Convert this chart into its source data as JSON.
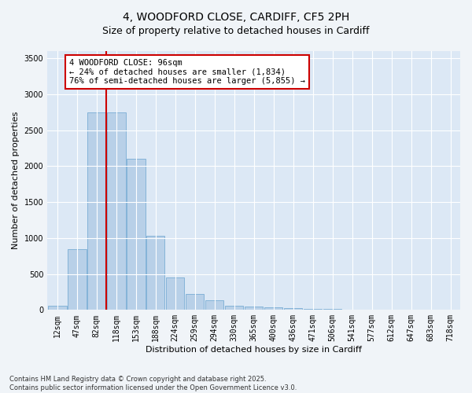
{
  "title_line1": "4, WOODFORD CLOSE, CARDIFF, CF5 2PH",
  "title_line2": "Size of property relative to detached houses in Cardiff",
  "xlabel": "Distribution of detached houses by size in Cardiff",
  "ylabel": "Number of detached properties",
  "categories": [
    "12sqm",
    "47sqm",
    "82sqm",
    "118sqm",
    "153sqm",
    "188sqm",
    "224sqm",
    "259sqm",
    "294sqm",
    "330sqm",
    "365sqm",
    "400sqm",
    "436sqm",
    "471sqm",
    "506sqm",
    "541sqm",
    "577sqm",
    "612sqm",
    "647sqm",
    "683sqm",
    "718sqm"
  ],
  "values": [
    55,
    850,
    2750,
    2750,
    2100,
    1030,
    450,
    220,
    140,
    60,
    50,
    40,
    25,
    20,
    10,
    8,
    5,
    3,
    2,
    1,
    1
  ],
  "bar_color": "#b8d0e8",
  "bar_edge_color": "#7aadd4",
  "annotation_text_line1": "4 WOODFORD CLOSE: 96sqm",
  "annotation_text_line2": "← 24% of detached houses are smaller (1,834)",
  "annotation_text_line3": "76% of semi-detached houses are larger (5,855) →",
  "annotation_box_color": "#ffffff",
  "annotation_box_edge": "#cc0000",
  "red_line_color": "#cc0000",
  "ylim": [
    0,
    3600
  ],
  "yticks": [
    0,
    500,
    1000,
    1500,
    2000,
    2500,
    3000,
    3500
  ],
  "background_color": "#dce8f5",
  "fig_background_color": "#f0f4f8",
  "footer_line1": "Contains HM Land Registry data © Crown copyright and database right 2025.",
  "footer_line2": "Contains public sector information licensed under the Open Government Licence v3.0.",
  "title_fontsize": 10,
  "subtitle_fontsize": 9,
  "tick_fontsize": 7,
  "ylabel_fontsize": 8,
  "xlabel_fontsize": 8,
  "annotation_fontsize": 7.5,
  "footer_fontsize": 6
}
